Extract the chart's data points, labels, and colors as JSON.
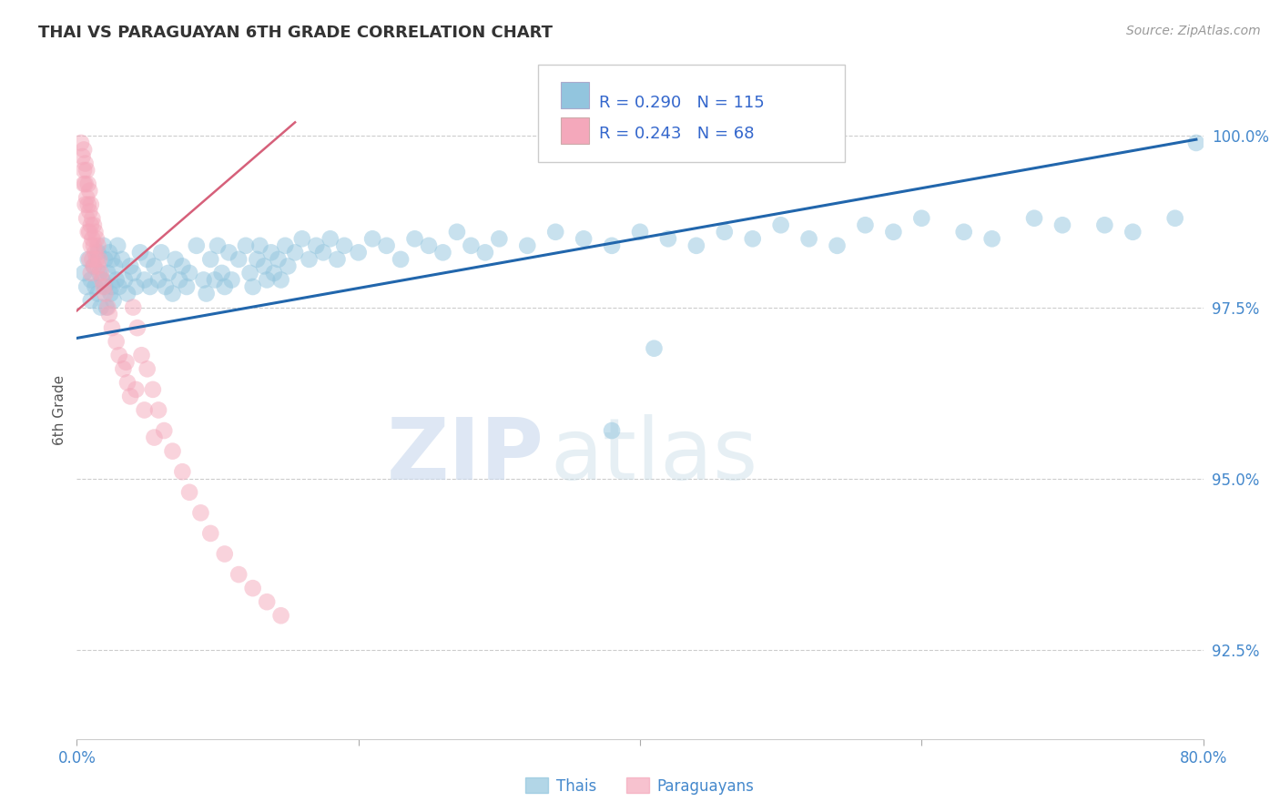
{
  "title": "THAI VS PARAGUAYAN 6TH GRADE CORRELATION CHART",
  "source": "Source: ZipAtlas.com",
  "ylabel": "6th Grade",
  "ytick_labels": [
    "92.5%",
    "95.0%",
    "97.5%",
    "100.0%"
  ],
  "ytick_values": [
    0.925,
    0.95,
    0.975,
    1.0
  ],
  "xmin": 0.0,
  "xmax": 0.8,
  "ymin": 0.912,
  "ymax": 1.008,
  "watermark_zip": "ZIP",
  "watermark_atlas": "atlas",
  "blue_color": "#92c5de",
  "blue_line_color": "#2166ac",
  "pink_color": "#f4a8bb",
  "pink_line_color": "#d6607a",
  "grid_color": "#cccccc",
  "title_color": "#333333",
  "axis_label_color": "#4488cc",
  "legend_text_color": "#3366cc",
  "legend_r_blue": "R = 0.290",
  "legend_n_blue": "N = 115",
  "legend_r_pink": "R = 0.243",
  "legend_n_pink": "N = 68",
  "thai_x": [
    0.005,
    0.007,
    0.008,
    0.01,
    0.01,
    0.012,
    0.013,
    0.015,
    0.015,
    0.016,
    0.017,
    0.018,
    0.019,
    0.02,
    0.02,
    0.021,
    0.022,
    0.023,
    0.024,
    0.025,
    0.025,
    0.026,
    0.027,
    0.028,
    0.029,
    0.03,
    0.032,
    0.034,
    0.036,
    0.038,
    0.04,
    0.042,
    0.045,
    0.048,
    0.05,
    0.052,
    0.055,
    0.058,
    0.06,
    0.063,
    0.065,
    0.068,
    0.07,
    0.073,
    0.075,
    0.078,
    0.08,
    0.085,
    0.09,
    0.092,
    0.095,
    0.098,
    0.1,
    0.103,
    0.105,
    0.108,
    0.11,
    0.115,
    0.12,
    0.123,
    0.125,
    0.128,
    0.13,
    0.133,
    0.135,
    0.138,
    0.14,
    0.143,
    0.145,
    0.148,
    0.15,
    0.155,
    0.16,
    0.165,
    0.17,
    0.175,
    0.18,
    0.185,
    0.19,
    0.2,
    0.21,
    0.22,
    0.23,
    0.24,
    0.25,
    0.26,
    0.27,
    0.28,
    0.29,
    0.3,
    0.32,
    0.34,
    0.36,
    0.38,
    0.4,
    0.42,
    0.44,
    0.46,
    0.48,
    0.5,
    0.52,
    0.54,
    0.56,
    0.58,
    0.6,
    0.63,
    0.65,
    0.68,
    0.7,
    0.73,
    0.75,
    0.78,
    0.795,
    0.38,
    0.41
  ],
  "thai_y": [
    0.98,
    0.978,
    0.982,
    0.979,
    0.976,
    0.981,
    0.978,
    0.983,
    0.977,
    0.98,
    0.975,
    0.979,
    0.984,
    0.978,
    0.982,
    0.975,
    0.98,
    0.983,
    0.977,
    0.982,
    0.978,
    0.976,
    0.981,
    0.979,
    0.984,
    0.978,
    0.982,
    0.979,
    0.977,
    0.981,
    0.98,
    0.978,
    0.983,
    0.979,
    0.982,
    0.978,
    0.981,
    0.979,
    0.983,
    0.978,
    0.98,
    0.977,
    0.982,
    0.979,
    0.981,
    0.978,
    0.98,
    0.984,
    0.979,
    0.977,
    0.982,
    0.979,
    0.984,
    0.98,
    0.978,
    0.983,
    0.979,
    0.982,
    0.984,
    0.98,
    0.978,
    0.982,
    0.984,
    0.981,
    0.979,
    0.983,
    0.98,
    0.982,
    0.979,
    0.984,
    0.981,
    0.983,
    0.985,
    0.982,
    0.984,
    0.983,
    0.985,
    0.982,
    0.984,
    0.983,
    0.985,
    0.984,
    0.982,
    0.985,
    0.984,
    0.983,
    0.986,
    0.984,
    0.983,
    0.985,
    0.984,
    0.986,
    0.985,
    0.984,
    0.986,
    0.985,
    0.984,
    0.986,
    0.985,
    0.987,
    0.985,
    0.984,
    0.987,
    0.986,
    0.988,
    0.986,
    0.985,
    0.988,
    0.987,
    0.987,
    0.986,
    0.988,
    0.999,
    0.957,
    0.969
  ],
  "para_x": [
    0.003,
    0.004,
    0.005,
    0.005,
    0.005,
    0.006,
    0.006,
    0.006,
    0.007,
    0.007,
    0.007,
    0.008,
    0.008,
    0.008,
    0.009,
    0.009,
    0.009,
    0.009,
    0.01,
    0.01,
    0.01,
    0.01,
    0.011,
    0.011,
    0.011,
    0.012,
    0.012,
    0.012,
    0.013,
    0.013,
    0.014,
    0.014,
    0.015,
    0.015,
    0.016,
    0.017,
    0.018,
    0.019,
    0.02,
    0.022,
    0.023,
    0.025,
    0.028,
    0.03,
    0.033,
    0.036,
    0.038,
    0.04,
    0.043,
    0.046,
    0.05,
    0.054,
    0.058,
    0.062,
    0.068,
    0.075,
    0.08,
    0.088,
    0.095,
    0.105,
    0.115,
    0.125,
    0.135,
    0.145,
    0.035,
    0.042,
    0.048,
    0.055
  ],
  "para_y": [
    0.999,
    0.997,
    0.998,
    0.995,
    0.993,
    0.996,
    0.993,
    0.99,
    0.995,
    0.991,
    0.988,
    0.993,
    0.99,
    0.986,
    0.992,
    0.989,
    0.986,
    0.982,
    0.99,
    0.987,
    0.984,
    0.98,
    0.988,
    0.985,
    0.982,
    0.987,
    0.984,
    0.981,
    0.986,
    0.983,
    0.985,
    0.982,
    0.984,
    0.981,
    0.982,
    0.98,
    0.979,
    0.978,
    0.977,
    0.975,
    0.974,
    0.972,
    0.97,
    0.968,
    0.966,
    0.964,
    0.962,
    0.975,
    0.972,
    0.968,
    0.966,
    0.963,
    0.96,
    0.957,
    0.954,
    0.951,
    0.948,
    0.945,
    0.942,
    0.939,
    0.936,
    0.934,
    0.932,
    0.93,
    0.967,
    0.963,
    0.96,
    0.956
  ],
  "blue_line_x": [
    0.0,
    0.795
  ],
  "blue_line_y": [
    0.9705,
    0.9995
  ],
  "pink_line_x": [
    0.0,
    0.155
  ],
  "pink_line_y": [
    0.9745,
    1.002
  ]
}
